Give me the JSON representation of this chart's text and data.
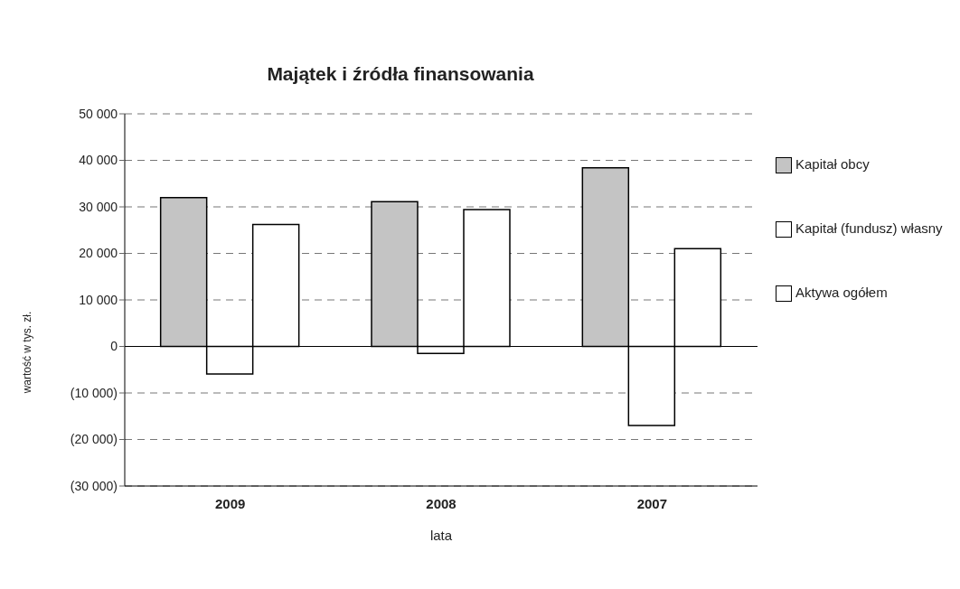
{
  "chart_data": {
    "type": "bar",
    "title": "Majątek i źródła finansowania",
    "xlabel": "lata",
    "ylabel": "wartość w tys. zł.",
    "categories": [
      "2009",
      "2008",
      "2007"
    ],
    "series": [
      {
        "name": "Kapitał obcy",
        "color": "#c4c4c4",
        "values": [
          32000,
          31100,
          38400
        ]
      },
      {
        "name": "Kapitał (fundusz) własny",
        "color": "#ffffff",
        "values": [
          -5900,
          -1500,
          -17000
        ]
      },
      {
        "name": "Aktywa ogółem",
        "color": "#ffffff",
        "values": [
          26200,
          29400,
          21000
        ]
      }
    ],
    "ylim": [
      -30000,
      50000
    ],
    "yticks": [
      {
        "value": -30000,
        "label": "(30 000)"
      },
      {
        "value": -20000,
        "label": "(20 000)"
      },
      {
        "value": -10000,
        "label": "(10 000)"
      },
      0,
      {
        "value": 10000,
        "label": "10 000"
      },
      {
        "value": 20000,
        "label": "20 000"
      },
      {
        "value": 30000,
        "label": "30 000"
      },
      {
        "value": 40000,
        "label": "40 000"
      },
      {
        "value": 50000,
        "label": "50 000"
      }
    ],
    "grid": "y",
    "legend": "right"
  }
}
